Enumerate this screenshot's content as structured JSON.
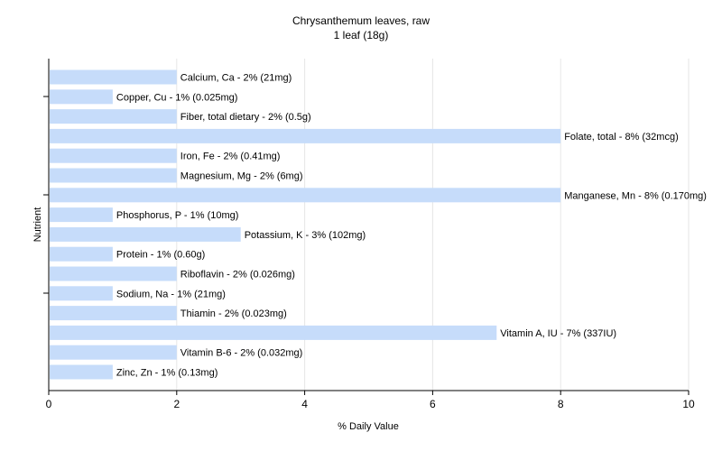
{
  "chart_data": {
    "type": "bar",
    "orientation": "horizontal",
    "title": "Chrysanthemum leaves, raw",
    "subtitle": "1 leaf (18g)",
    "xlabel": "% Daily Value",
    "ylabel": "Nutrient",
    "xlim": [
      0,
      10
    ],
    "xticks": [
      0,
      2,
      4,
      6,
      8,
      10
    ],
    "grid": true,
    "bar_color": "#c6dcfa",
    "categories": [
      "Calcium, Ca",
      "Copper, Cu",
      "Fiber, total dietary",
      "Folate, total",
      "Iron, Fe",
      "Magnesium, Mg",
      "Manganese, Mn",
      "Phosphorus, P",
      "Potassium, K",
      "Protein",
      "Riboflavin",
      "Sodium, Na",
      "Thiamin",
      "Vitamin A, IU",
      "Vitamin B-6",
      "Zinc, Zn"
    ],
    "values": [
      2,
      1,
      2,
      8,
      2,
      2,
      8,
      1,
      3,
      1,
      2,
      1,
      2,
      7,
      2,
      1
    ],
    "labels": [
      "Calcium, Ca - 2% (21mg)",
      "Copper, Cu - 1% (0.025mg)",
      "Fiber, total dietary - 2% (0.5g)",
      "Folate, total - 8% (32mcg)",
      "Iron, Fe - 2% (0.41mg)",
      "Magnesium, Mg - 2% (6mg)",
      "Manganese, Mn - 8% (0.170mg)",
      "Phosphorus, P - 1% (10mg)",
      "Potassium, K - 3% (102mg)",
      "Protein - 1% (0.60g)",
      "Riboflavin - 2% (0.026mg)",
      "Sodium, Na - 1% (21mg)",
      "Thiamin - 2% (0.023mg)",
      "Vitamin A, IU - 7% (337IU)",
      "Vitamin B-6 - 2% (0.032mg)",
      "Zinc, Zn - 1% (0.13mg)"
    ]
  }
}
